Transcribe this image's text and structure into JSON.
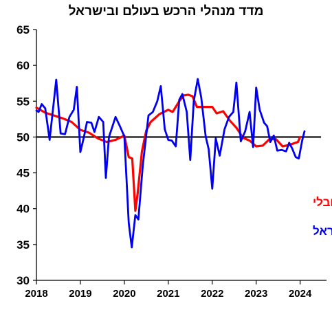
{
  "chart_data": {
    "type": "line",
    "title": "מדד מנהלי הרכש בעולם ובישראל",
    "ylim": [
      30,
      65
    ],
    "yticks": [
      30,
      35,
      40,
      45,
      50,
      55,
      60,
      65
    ],
    "xlim": [
      2018,
      2024.6
    ],
    "xticks": [
      "2018",
      "2019",
      "2020",
      "2021",
      "2022",
      "2023",
      "2024"
    ],
    "reference_line": 50,
    "grid": false,
    "legend_placement": "right-middle",
    "series": [
      {
        "name": "מדד גלובלי",
        "color": "#ff0000",
        "points": [
          [
            2018.0,
            54.1
          ],
          [
            2018.2,
            53.4
          ],
          [
            2018.4,
            53.0
          ],
          [
            2018.6,
            52.6
          ],
          [
            2018.8,
            52.1
          ],
          [
            2019.0,
            51.0
          ],
          [
            2019.2,
            50.6
          ],
          [
            2019.4,
            49.8
          ],
          [
            2019.6,
            49.3
          ],
          [
            2019.8,
            49.6
          ],
          [
            2020.0,
            50.2
          ],
          [
            2020.1,
            47.2
          ],
          [
            2020.18,
            47.0
          ],
          [
            2020.25,
            39.7
          ],
          [
            2020.3,
            42.0
          ],
          [
            2020.4,
            48.0
          ],
          [
            2020.5,
            50.9
          ],
          [
            2020.6,
            52.1
          ],
          [
            2020.8,
            53.2
          ],
          [
            2021.0,
            53.8
          ],
          [
            2021.1,
            53.5
          ],
          [
            2021.25,
            55.0
          ],
          [
            2021.35,
            55.8
          ],
          [
            2021.45,
            55.9
          ],
          [
            2021.55,
            55.7
          ],
          [
            2021.65,
            54.2
          ],
          [
            2021.8,
            54.2
          ],
          [
            2022.0,
            54.2
          ],
          [
            2022.1,
            53.3
          ],
          [
            2022.25,
            53.6
          ],
          [
            2022.4,
            52.3
          ],
          [
            2022.55,
            51.3
          ],
          [
            2022.7,
            49.9
          ],
          [
            2022.85,
            49.5
          ],
          [
            2023.0,
            48.7
          ],
          [
            2023.15,
            48.8
          ],
          [
            2023.3,
            49.7
          ],
          [
            2023.45,
            49.7
          ],
          [
            2023.6,
            48.7
          ],
          [
            2023.75,
            48.9
          ],
          [
            2023.85,
            49.1
          ],
          [
            2023.95,
            49.3
          ],
          [
            2024.0,
            50.0
          ]
        ]
      },
      {
        "name": "ישראל",
        "color": "#0000ee",
        "points": [
          [
            2018.0,
            53.7
          ],
          [
            2018.05,
            53.5
          ],
          [
            2018.12,
            54.6
          ],
          [
            2018.2,
            54.0
          ],
          [
            2018.3,
            49.6
          ],
          [
            2018.45,
            58.0
          ],
          [
            2018.55,
            50.5
          ],
          [
            2018.65,
            50.4
          ],
          [
            2018.75,
            52.8
          ],
          [
            2018.85,
            53.8
          ],
          [
            2018.92,
            57.0
          ],
          [
            2019.0,
            47.9
          ],
          [
            2019.08,
            50.0
          ],
          [
            2019.15,
            52.1
          ],
          [
            2019.25,
            52.0
          ],
          [
            2019.32,
            50.7
          ],
          [
            2019.42,
            52.8
          ],
          [
            2019.52,
            52.1
          ],
          [
            2019.58,
            44.3
          ],
          [
            2019.65,
            50.0
          ],
          [
            2019.8,
            52.8
          ],
          [
            2019.9,
            51.5
          ],
          [
            2020.0,
            50.1
          ],
          [
            2020.1,
            38.0
          ],
          [
            2020.17,
            34.6
          ],
          [
            2020.25,
            39.1
          ],
          [
            2020.32,
            38.5
          ],
          [
            2020.42,
            46.0
          ],
          [
            2020.55,
            53.0
          ],
          [
            2020.65,
            53.5
          ],
          [
            2020.75,
            55.0
          ],
          [
            2020.83,
            57.1
          ],
          [
            2020.92,
            51.1
          ],
          [
            2021.0,
            49.6
          ],
          [
            2021.08,
            49.5
          ],
          [
            2021.17,
            48.7
          ],
          [
            2021.25,
            55.2
          ],
          [
            2021.32,
            56.0
          ],
          [
            2021.42,
            53.5
          ],
          [
            2021.5,
            46.8
          ],
          [
            2021.58,
            55.0
          ],
          [
            2021.67,
            58.1
          ],
          [
            2021.75,
            55.5
          ],
          [
            2021.85,
            50.1
          ],
          [
            2021.92,
            48.3
          ],
          [
            2022.0,
            42.8
          ],
          [
            2022.08,
            49.8
          ],
          [
            2022.17,
            47.4
          ],
          [
            2022.28,
            51.1
          ],
          [
            2022.38,
            52.8
          ],
          [
            2022.48,
            53.5
          ],
          [
            2022.55,
            57.6
          ],
          [
            2022.65,
            49.4
          ],
          [
            2022.75,
            50.8
          ],
          [
            2022.85,
            53.5
          ],
          [
            2022.93,
            48.6
          ],
          [
            2023.0,
            56.9
          ],
          [
            2023.08,
            53.8
          ],
          [
            2023.18,
            52.0
          ],
          [
            2023.25,
            51.5
          ],
          [
            2023.32,
            49.3
          ],
          [
            2023.4,
            50.2
          ],
          [
            2023.48,
            48.1
          ],
          [
            2023.58,
            48.2
          ],
          [
            2023.68,
            48.0
          ],
          [
            2023.75,
            49.2
          ],
          [
            2023.82,
            48.4
          ],
          [
            2023.9,
            47.2
          ],
          [
            2023.97,
            47.0
          ],
          [
            2024.05,
            49.6
          ],
          [
            2024.1,
            50.8
          ]
        ]
      }
    ]
  }
}
